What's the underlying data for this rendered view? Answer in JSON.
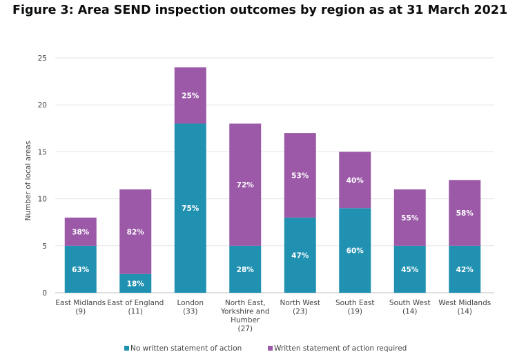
{
  "page_title": "Figure 3: Area SEND inspection outcomes by region as at 31 March 2021",
  "colors": {
    "no_wsoa": "#2191b2",
    "wsoa": "#9b59a8"
  },
  "chart_data": {
    "type": "bar",
    "stacked": true,
    "ylabel": "Number of local areas",
    "ylim": [
      0,
      25
    ],
    "yticks": [
      0,
      5,
      10,
      15,
      20,
      25
    ],
    "grid": true,
    "legend_position": "bottom",
    "categories": [
      [
        "East Midlands",
        "(9)"
      ],
      [
        "East of England",
        "(11)"
      ],
      [
        "London",
        "(33)"
      ],
      [
        "North East,",
        "Yorkshire and",
        "Humber",
        "(27)"
      ],
      [
        "North West",
        "(23)"
      ],
      [
        "South East",
        "(19)"
      ],
      [
        "South West",
        "(14)"
      ],
      [
        "West Midlands",
        "(14)"
      ]
    ],
    "series": [
      {
        "name": "No written statement of action",
        "values": [
          5,
          2,
          18,
          5,
          8,
          9,
          5,
          5
        ],
        "labels": [
          "63%",
          "18%",
          "75%",
          "28%",
          "47%",
          "60%",
          "45%",
          "42%"
        ]
      },
      {
        "name": "Written statement of action required",
        "values": [
          3,
          9,
          6,
          13,
          9,
          6,
          6,
          7
        ],
        "labels": [
          "38%",
          "82%",
          "25%",
          "72%",
          "53%",
          "40%",
          "55%",
          "58%"
        ]
      }
    ]
  }
}
